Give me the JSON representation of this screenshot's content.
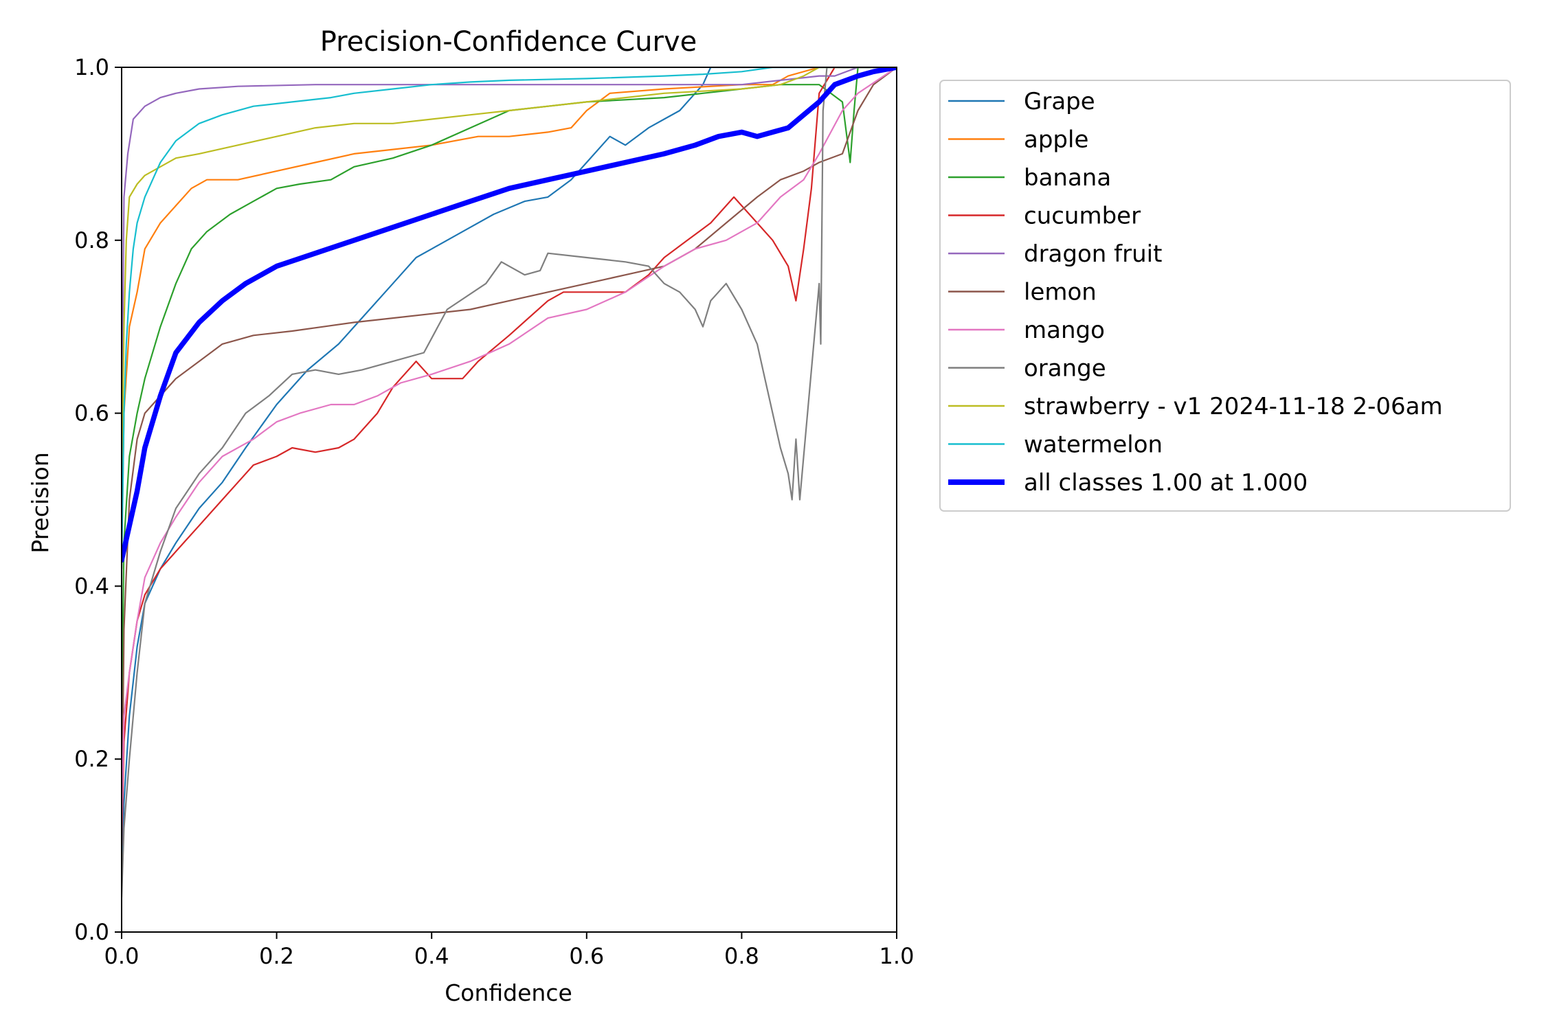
{
  "chart_data": {
    "type": "line",
    "title": "Precision-Confidence Curve",
    "xlabel": "Confidence",
    "ylabel": "Precision",
    "xlim": [
      0,
      1
    ],
    "ylim": [
      0,
      1
    ],
    "xticks": [
      "0.0",
      "0.2",
      "0.4",
      "0.6",
      "0.8",
      "1.0"
    ],
    "yticks": [
      "0.0",
      "0.2",
      "0.4",
      "0.6",
      "0.8",
      "1.0"
    ],
    "grid": false,
    "legend_position": "outside-right",
    "series": [
      {
        "name": "Grape",
        "color": "#1f77b4",
        "x": [
          0.0,
          0.003,
          0.01,
          0.02,
          0.03,
          0.05,
          0.07,
          0.1,
          0.13,
          0.16,
          0.2,
          0.24,
          0.28,
          0.32,
          0.35,
          0.38,
          0.4,
          0.44,
          0.48,
          0.52,
          0.55,
          0.58,
          0.6,
          0.63,
          0.65,
          0.68,
          0.7,
          0.72,
          0.74,
          0.75,
          0.76,
          0.8,
          0.9,
          0.95,
          1.0
        ],
        "y": [
          0.06,
          0.15,
          0.25,
          0.33,
          0.38,
          0.42,
          0.45,
          0.49,
          0.52,
          0.56,
          0.61,
          0.65,
          0.68,
          0.72,
          0.75,
          0.78,
          0.79,
          0.81,
          0.83,
          0.845,
          0.85,
          0.87,
          0.89,
          0.92,
          0.91,
          0.93,
          0.94,
          0.95,
          0.97,
          0.98,
          1.0,
          1.0,
          1.0,
          1.0,
          1.0
        ]
      },
      {
        "name": "apple",
        "color": "#ff7f0e",
        "x": [
          0.0,
          0.003,
          0.01,
          0.02,
          0.03,
          0.05,
          0.07,
          0.09,
          0.11,
          0.15,
          0.2,
          0.25,
          0.3,
          0.35,
          0.4,
          0.46,
          0.5,
          0.55,
          0.58,
          0.6,
          0.63,
          0.7,
          0.8,
          0.84,
          0.86,
          0.9,
          0.95,
          1.0
        ],
        "y": [
          0.42,
          0.6,
          0.7,
          0.74,
          0.79,
          0.82,
          0.84,
          0.86,
          0.87,
          0.87,
          0.88,
          0.89,
          0.9,
          0.905,
          0.91,
          0.92,
          0.92,
          0.925,
          0.93,
          0.95,
          0.97,
          0.975,
          0.98,
          0.98,
          0.99,
          1.0,
          1.0,
          1.0
        ]
      },
      {
        "name": "banana",
        "color": "#2ca02c",
        "x": [
          0.0,
          0.003,
          0.01,
          0.02,
          0.03,
          0.05,
          0.07,
          0.09,
          0.11,
          0.14,
          0.17,
          0.2,
          0.23,
          0.27,
          0.3,
          0.35,
          0.4,
          0.45,
          0.5,
          0.55,
          0.6,
          0.7,
          0.75,
          0.8,
          0.85,
          0.9,
          0.93,
          0.94,
          0.945,
          0.95,
          1.0
        ],
        "y": [
          0.23,
          0.45,
          0.55,
          0.6,
          0.64,
          0.7,
          0.75,
          0.79,
          0.81,
          0.83,
          0.845,
          0.86,
          0.865,
          0.87,
          0.885,
          0.895,
          0.91,
          0.93,
          0.95,
          0.955,
          0.96,
          0.965,
          0.97,
          0.975,
          0.98,
          0.98,
          0.96,
          0.89,
          0.95,
          1.0,
          1.0
        ]
      },
      {
        "name": "cucumber",
        "color": "#d62728",
        "x": [
          0.0,
          0.003,
          0.01,
          0.02,
          0.03,
          0.05,
          0.08,
          0.1,
          0.13,
          0.15,
          0.17,
          0.2,
          0.22,
          0.25,
          0.28,
          0.3,
          0.33,
          0.35,
          0.38,
          0.4,
          0.44,
          0.46,
          0.5,
          0.55,
          0.57,
          0.6,
          0.65,
          0.68,
          0.7,
          0.73,
          0.76,
          0.79,
          0.82,
          0.84,
          0.86,
          0.87,
          0.88,
          0.89,
          0.9,
          0.92,
          1.0
        ],
        "y": [
          0.1,
          0.22,
          0.3,
          0.36,
          0.39,
          0.42,
          0.45,
          0.47,
          0.5,
          0.52,
          0.54,
          0.55,
          0.56,
          0.555,
          0.56,
          0.57,
          0.6,
          0.63,
          0.66,
          0.64,
          0.64,
          0.66,
          0.69,
          0.73,
          0.74,
          0.74,
          0.74,
          0.76,
          0.78,
          0.8,
          0.82,
          0.85,
          0.82,
          0.8,
          0.77,
          0.73,
          0.79,
          0.86,
          0.97,
          1.0,
          1.0
        ]
      },
      {
        "name": "dragon fruit",
        "color": "#9467bd",
        "x": [
          0.0,
          0.003,
          0.008,
          0.015,
          0.03,
          0.05,
          0.07,
          0.1,
          0.15,
          0.25,
          0.4,
          0.6,
          0.8,
          0.85,
          0.9,
          0.92,
          0.95,
          1.0
        ],
        "y": [
          0.55,
          0.85,
          0.9,
          0.94,
          0.955,
          0.965,
          0.97,
          0.975,
          0.978,
          0.98,
          0.98,
          0.98,
          0.98,
          0.985,
          0.99,
          0.99,
          1.0,
          1.0
        ]
      },
      {
        "name": "lemon",
        "color": "#8c564b",
        "x": [
          0.0,
          0.003,
          0.01,
          0.02,
          0.03,
          0.05,
          0.07,
          0.1,
          0.13,
          0.17,
          0.22,
          0.26,
          0.3,
          0.35,
          0.4,
          0.45,
          0.5,
          0.55,
          0.6,
          0.65,
          0.7,
          0.74,
          0.78,
          0.82,
          0.85,
          0.88,
          0.9,
          0.93,
          0.95,
          0.97,
          1.0
        ],
        "y": [
          0.1,
          0.35,
          0.5,
          0.57,
          0.6,
          0.62,
          0.64,
          0.66,
          0.68,
          0.69,
          0.695,
          0.7,
          0.705,
          0.71,
          0.715,
          0.72,
          0.73,
          0.74,
          0.75,
          0.76,
          0.77,
          0.79,
          0.82,
          0.85,
          0.87,
          0.88,
          0.89,
          0.9,
          0.95,
          0.98,
          1.0
        ]
      },
      {
        "name": "mango",
        "color": "#e377c2",
        "x": [
          0.0,
          0.003,
          0.01,
          0.02,
          0.03,
          0.05,
          0.07,
          0.1,
          0.13,
          0.17,
          0.2,
          0.23,
          0.27,
          0.3,
          0.33,
          0.36,
          0.4,
          0.45,
          0.5,
          0.55,
          0.6,
          0.65,
          0.7,
          0.74,
          0.78,
          0.82,
          0.85,
          0.88,
          0.9,
          0.93,
          0.95,
          1.0
        ],
        "y": [
          0.12,
          0.25,
          0.3,
          0.36,
          0.41,
          0.45,
          0.48,
          0.52,
          0.55,
          0.57,
          0.59,
          0.6,
          0.61,
          0.61,
          0.62,
          0.635,
          0.645,
          0.66,
          0.68,
          0.71,
          0.72,
          0.74,
          0.77,
          0.79,
          0.8,
          0.82,
          0.85,
          0.87,
          0.9,
          0.95,
          0.97,
          1.0
        ]
      },
      {
        "name": "orange",
        "color": "#7f7f7f",
        "x": [
          0.0,
          0.003,
          0.01,
          0.02,
          0.03,
          0.05,
          0.07,
          0.1,
          0.13,
          0.16,
          0.19,
          0.22,
          0.25,
          0.28,
          0.31,
          0.35,
          0.39,
          0.42,
          0.47,
          0.49,
          0.52,
          0.54,
          0.55,
          0.6,
          0.65,
          0.68,
          0.7,
          0.72,
          0.74,
          0.75,
          0.76,
          0.77,
          0.78,
          0.8,
          0.82,
          0.83,
          0.84,
          0.85,
          0.86,
          0.865,
          0.87,
          0.875,
          0.88,
          0.9,
          0.902,
          0.905,
          0.91,
          1.0
        ],
        "y": [
          0.04,
          0.12,
          0.2,
          0.3,
          0.38,
          0.44,
          0.49,
          0.53,
          0.56,
          0.6,
          0.62,
          0.645,
          0.65,
          0.645,
          0.65,
          0.66,
          0.67,
          0.72,
          0.75,
          0.775,
          0.76,
          0.765,
          0.785,
          0.78,
          0.775,
          0.77,
          0.75,
          0.74,
          0.72,
          0.7,
          0.73,
          0.74,
          0.75,
          0.72,
          0.68,
          0.64,
          0.6,
          0.56,
          0.53,
          0.5,
          0.57,
          0.5,
          0.55,
          0.75,
          0.68,
          0.95,
          1.0,
          1.0
        ]
      },
      {
        "name": "strawberry - v1 2024-11-18 2-06am",
        "color": "#bcbd22",
        "x": [
          0.0,
          0.003,
          0.006,
          0.01,
          0.02,
          0.03,
          0.05,
          0.07,
          0.1,
          0.15,
          0.2,
          0.25,
          0.3,
          0.35,
          0.4,
          0.45,
          0.5,
          0.55,
          0.6,
          0.65,
          0.7,
          0.8,
          0.85,
          0.88,
          0.9,
          1.0
        ],
        "y": [
          0.5,
          0.7,
          0.8,
          0.85,
          0.865,
          0.875,
          0.885,
          0.895,
          0.9,
          0.91,
          0.92,
          0.93,
          0.935,
          0.935,
          0.94,
          0.945,
          0.95,
          0.955,
          0.96,
          0.965,
          0.97,
          0.975,
          0.98,
          0.99,
          1.0,
          1.0
        ]
      },
      {
        "name": "watermelon",
        "color": "#17becf",
        "x": [
          0.0,
          0.003,
          0.006,
          0.01,
          0.015,
          0.02,
          0.03,
          0.04,
          0.05,
          0.07,
          0.1,
          0.13,
          0.17,
          0.22,
          0.27,
          0.3,
          0.35,
          0.4,
          0.45,
          0.5,
          0.6,
          0.7,
          0.75,
          0.8,
          0.84,
          0.86,
          1.0
        ],
        "y": [
          0.42,
          0.6,
          0.68,
          0.74,
          0.79,
          0.82,
          0.85,
          0.87,
          0.89,
          0.915,
          0.935,
          0.945,
          0.955,
          0.96,
          0.965,
          0.97,
          0.975,
          0.98,
          0.983,
          0.985,
          0.987,
          0.99,
          0.992,
          0.995,
          1.0,
          1.0,
          1.0
        ]
      },
      {
        "name": "all classes 1.00 at 1.000",
        "color": "#0000ff",
        "x": [
          0.0,
          0.01,
          0.02,
          0.03,
          0.05,
          0.07,
          0.1,
          0.13,
          0.16,
          0.2,
          0.25,
          0.3,
          0.35,
          0.4,
          0.45,
          0.5,
          0.55,
          0.6,
          0.65,
          0.7,
          0.74,
          0.77,
          0.8,
          0.82,
          0.84,
          0.86,
          0.88,
          0.9,
          0.92,
          0.95,
          0.97,
          1.0
        ],
        "y": [
          0.43,
          0.47,
          0.51,
          0.56,
          0.62,
          0.67,
          0.705,
          0.73,
          0.75,
          0.77,
          0.785,
          0.8,
          0.815,
          0.83,
          0.845,
          0.86,
          0.87,
          0.88,
          0.89,
          0.9,
          0.91,
          0.92,
          0.925,
          0.92,
          0.925,
          0.93,
          0.945,
          0.96,
          0.98,
          0.99,
          0.995,
          1.0
        ]
      }
    ]
  }
}
